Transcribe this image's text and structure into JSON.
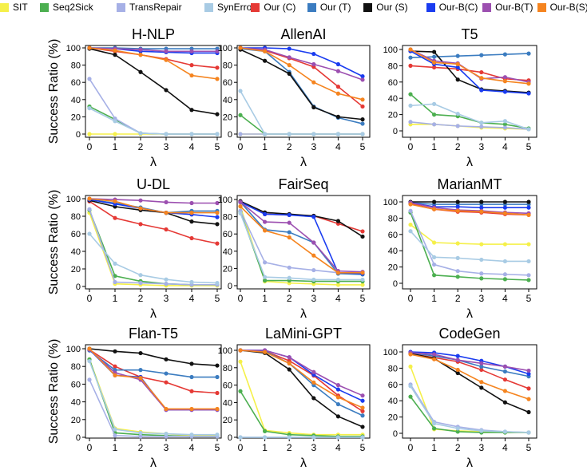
{
  "legend": [
    {
      "label": "SIT",
      "color": "#f5f04a"
    },
    {
      "label": "Seq2Sick",
      "color": "#4caf50"
    },
    {
      "label": "TransRepair",
      "color": "#a6b0e6"
    },
    {
      "label": "SynError",
      "color": "#a8cbe4"
    },
    {
      "label": "Our (C)",
      "color": "#e53935"
    },
    {
      "label": "Our (T)",
      "color": "#3b7cc0"
    },
    {
      "label": "Our (S)",
      "color": "#111111"
    },
    {
      "label": "Our-B(C)",
      "color": "#1a3cf0"
    },
    {
      "label": "Our-B(T)",
      "color": "#9c4fb0"
    },
    {
      "label": "Our-B(S)",
      "color": "#f5841f"
    }
  ],
  "ylabel": "Success Ratio (%)",
  "chart_data": [
    {
      "type": "line",
      "title": "H-NLP",
      "xlabel": "λ",
      "x": [
        0,
        1,
        2,
        3,
        4,
        5
      ],
      "yticks": [
        0,
        20,
        40,
        60,
        80,
        100
      ],
      "ylim": [
        0,
        100
      ],
      "series": [
        {
          "name": "SIT",
          "values": [
            0,
            0,
            0,
            0,
            0,
            0
          ]
        },
        {
          "name": "Seq2Sick",
          "values": [
            32,
            17,
            1,
            0,
            0,
            0
          ]
        },
        {
          "name": "TransRepair",
          "values": [
            64,
            18,
            1,
            0,
            0,
            0
          ]
        },
        {
          "name": "SynError",
          "values": [
            30,
            15,
            1,
            0,
            0,
            0
          ]
        },
        {
          "name": "Our (C)",
          "values": [
            100,
            96,
            92,
            87,
            80,
            77
          ]
        },
        {
          "name": "Our (T)",
          "values": [
            100,
            100,
            99,
            99,
            99,
            99
          ]
        },
        {
          "name": "Our (S)",
          "values": [
            99,
            92,
            72,
            51,
            28,
            23
          ]
        },
        {
          "name": "Our-B(C)",
          "values": [
            100,
            99,
            96,
            95,
            94,
            94
          ]
        },
        {
          "name": "Our-B(T)",
          "values": [
            100,
            99,
            98,
            96,
            96,
            96
          ]
        },
        {
          "name": "Our-B(S)",
          "values": [
            100,
            97,
            92,
            86,
            68,
            64
          ]
        }
      ]
    },
    {
      "type": "line",
      "title": "AllenAI",
      "xlabel": "λ",
      "x": [
        0,
        1,
        2,
        3,
        4,
        5
      ],
      "yticks": [
        0,
        20,
        40,
        60,
        80,
        100
      ],
      "ylim": [
        0,
        100
      ],
      "series": [
        {
          "name": "SIT",
          "values": [
            0,
            0,
            0,
            0,
            0,
            0
          ]
        },
        {
          "name": "Seq2Sick",
          "values": [
            22,
            0,
            0,
            0,
            0,
            0
          ]
        },
        {
          "name": "TransRepair",
          "values": [
            0,
            0,
            0,
            0,
            0,
            0
          ]
        },
        {
          "name": "SynError",
          "values": [
            50,
            0,
            0,
            0,
            0,
            0
          ]
        },
        {
          "name": "Our (C)",
          "values": [
            100,
            97,
            88,
            78,
            55,
            32
          ]
        },
        {
          "name": "Our (T)",
          "values": [
            99,
            96,
            72,
            32,
            19,
            12
          ]
        },
        {
          "name": "Our (S)",
          "values": [
            98,
            85,
            70,
            31,
            20,
            17
          ]
        },
        {
          "name": "Our-B(C)",
          "values": [
            100,
            100,
            99,
            93,
            81,
            67
          ]
        },
        {
          "name": "Our-B(T)",
          "values": [
            100,
            98,
            89,
            81,
            73,
            63
          ]
        },
        {
          "name": "Our-B(S)",
          "values": [
            100,
            96,
            80,
            60,
            47,
            40
          ]
        }
      ]
    },
    {
      "type": "line",
      "title": "T5",
      "xlabel": "λ",
      "x": [
        0,
        1,
        2,
        3,
        4,
        5
      ],
      "yticks": [
        0,
        20,
        40,
        60,
        80,
        100
      ],
      "ylim": [
        0,
        100
      ],
      "series": [
        {
          "name": "SIT",
          "values": [
            8,
            8,
            6,
            4,
            3,
            2
          ]
        },
        {
          "name": "Seq2Sick",
          "values": [
            45,
            20,
            18,
            10,
            8,
            3
          ]
        },
        {
          "name": "TransRepair",
          "values": [
            11,
            8,
            6,
            5,
            4,
            2
          ]
        },
        {
          "name": "SynError",
          "values": [
            31,
            33,
            21,
            10,
            12,
            2
          ]
        },
        {
          "name": "Our (C)",
          "values": [
            80,
            78,
            76,
            72,
            64,
            62
          ]
        },
        {
          "name": "Our (T)",
          "values": [
            90,
            91,
            92,
            93,
            94,
            95
          ]
        },
        {
          "name": "Our (S)",
          "values": [
            98,
            97,
            63,
            51,
            49,
            47
          ]
        },
        {
          "name": "Our-B(C)",
          "values": [
            98,
            82,
            78,
            50,
            48,
            46
          ]
        },
        {
          "name": "Our-B(T)",
          "values": [
            100,
            86,
            83,
            64,
            66,
            60
          ]
        },
        {
          "name": "Our-B(S)",
          "values": [
            100,
            84,
            82,
            65,
            61,
            58
          ]
        }
      ]
    },
    {
      "type": "line",
      "title": "U-DL",
      "xlabel": "λ",
      "x": [
        0,
        1,
        2,
        3,
        4,
        5
      ],
      "yticks": [
        0,
        20,
        40,
        60,
        80,
        100
      ],
      "ylim": [
        0,
        100
      ],
      "series": [
        {
          "name": "SIT",
          "values": [
            84,
            3,
            2,
            1,
            1,
            1
          ]
        },
        {
          "name": "Seq2Sick",
          "values": [
            87,
            12,
            6,
            3,
            2,
            2
          ]
        },
        {
          "name": "TransRepair",
          "values": [
            88,
            5,
            4,
            3,
            2,
            2
          ]
        },
        {
          "name": "SynError",
          "values": [
            60,
            26,
            13,
            8,
            5,
            4
          ]
        },
        {
          "name": "Our (C)",
          "values": [
            97,
            78,
            71,
            65,
            55,
            49
          ]
        },
        {
          "name": "Our (T)",
          "values": [
            99,
            95,
            90,
            84,
            86,
            86
          ]
        },
        {
          "name": "Our (S)",
          "values": [
            98,
            91,
            87,
            84,
            74,
            71
          ]
        },
        {
          "name": "Our-B(C)",
          "values": [
            99,
            94,
            89,
            84,
            82,
            79
          ]
        },
        {
          "name": "Our-B(T)",
          "values": [
            100,
            99,
            98,
            96,
            95,
            95
          ]
        },
        {
          "name": "Our-B(S)",
          "values": [
            100,
            97,
            89,
            84,
            84,
            84
          ]
        }
      ]
    },
    {
      "type": "line",
      "title": "FairSeq",
      "xlabel": "λ",
      "x": [
        0,
        1,
        2,
        3,
        4,
        5
      ],
      "yticks": [
        0,
        20,
        40,
        60,
        80,
        100
      ],
      "ylim": [
        0,
        100
      ],
      "series": [
        {
          "name": "SIT",
          "values": [
            92,
            5,
            3,
            2,
            1,
            1
          ]
        },
        {
          "name": "Seq2Sick",
          "values": [
            86,
            6,
            6,
            5,
            5,
            5
          ]
        },
        {
          "name": "TransRepair",
          "values": [
            87,
            27,
            21,
            18,
            15,
            14
          ]
        },
        {
          "name": "SynError",
          "values": [
            84,
            10,
            9,
            7,
            7,
            7
          ]
        },
        {
          "name": "Our (C)",
          "values": [
            98,
            83,
            82,
            81,
            72,
            63
          ]
        },
        {
          "name": "Our (T)",
          "values": [
            97,
            65,
            62,
            50,
            14,
            13
          ]
        },
        {
          "name": "Our (S)",
          "values": [
            98,
            85,
            83,
            81,
            75,
            57
          ]
        },
        {
          "name": "Our-B(C)",
          "values": [
            97,
            83,
            82,
            80,
            15,
            14
          ]
        },
        {
          "name": "Our-B(T)",
          "values": [
            97,
            74,
            73,
            50,
            17,
            16
          ]
        },
        {
          "name": "Our-B(S)",
          "values": [
            92,
            64,
            56,
            35,
            15,
            15
          ]
        }
      ]
    },
    {
      "type": "line",
      "title": "MarianMT",
      "xlabel": "λ",
      "x": [
        0,
        1,
        2,
        3,
        4,
        5
      ],
      "yticks": [
        0,
        20,
        40,
        60,
        80,
        100
      ],
      "ylim": [
        0,
        100
      ],
      "series": [
        {
          "name": "SIT",
          "values": [
            72,
            50,
            49,
            48,
            48,
            48
          ]
        },
        {
          "name": "Seq2Sick",
          "values": [
            87,
            10,
            8,
            6,
            5,
            4
          ]
        },
        {
          "name": "TransRepair",
          "values": [
            89,
            23,
            15,
            12,
            11,
            10
          ]
        },
        {
          "name": "SynError",
          "values": [
            64,
            32,
            31,
            29,
            27,
            27
          ]
        },
        {
          "name": "Our (C)",
          "values": [
            98,
            91,
            88,
            87,
            85,
            84
          ]
        },
        {
          "name": "Our (T)",
          "values": [
            99,
            97,
            97,
            97,
            97,
            97
          ]
        },
        {
          "name": "Our (S)",
          "values": [
            100,
            100,
            100,
            100,
            100,
            100
          ]
        },
        {
          "name": "Our-B(C)",
          "values": [
            99,
            94,
            94,
            93,
            93,
            93
          ]
        },
        {
          "name": "Our-B(T)",
          "values": [
            99,
            93,
            90,
            89,
            87,
            86
          ]
        },
        {
          "name": "Our-B(S)",
          "values": [
            97,
            91,
            89,
            88,
            86,
            84
          ]
        }
      ]
    },
    {
      "type": "line",
      "title": "Flan-T5",
      "xlabel": "λ",
      "x": [
        0,
        1,
        2,
        3,
        4,
        5
      ],
      "yticks": [
        0,
        20,
        40,
        60,
        80,
        100
      ],
      "ylim": [
        0,
        100
      ],
      "series": [
        {
          "name": "SIT",
          "values": [
            88,
            10,
            6,
            4,
            2,
            2
          ]
        },
        {
          "name": "Seq2Sick",
          "values": [
            88,
            5,
            3,
            2,
            1,
            1
          ]
        },
        {
          "name": "TransRepair",
          "values": [
            65,
            2,
            1,
            1,
            1,
            1
          ]
        },
        {
          "name": "SynError",
          "values": [
            86,
            9,
            5,
            4,
            3,
            3
          ]
        },
        {
          "name": "Our (C)",
          "values": [
            99,
            80,
            68,
            62,
            52,
            50
          ]
        },
        {
          "name": "Our (T)",
          "values": [
            98,
            76,
            76,
            72,
            68,
            68
          ]
        },
        {
          "name": "Our (S)",
          "values": [
            100,
            97,
            95,
            88,
            83,
            81
          ]
        },
        {
          "name": "Our-B(C)",
          "values": [
            99,
            70,
            68,
            31,
            31,
            31
          ]
        },
        {
          "name": "Our-B(T)",
          "values": [
            99,
            73,
            65,
            31,
            31,
            31
          ]
        },
        {
          "name": "Our-B(S)",
          "values": [
            100,
            70,
            67,
            32,
            32,
            32
          ]
        }
      ]
    },
    {
      "type": "line",
      "title": "LaMini-GPT",
      "xlabel": "λ",
      "x": [
        0,
        1,
        2,
        3,
        4,
        5
      ],
      "yticks": [
        0,
        20,
        40,
        60,
        80,
        100
      ],
      "ylim": [
        0,
        100
      ],
      "series": [
        {
          "name": "SIT",
          "values": [
            87,
            8,
            5,
            3,
            3,
            3
          ]
        },
        {
          "name": "Seq2Sick",
          "values": [
            53,
            7,
            3,
            2,
            1,
            1
          ]
        },
        {
          "name": "TransRepair",
          "values": [
            0,
            0,
            0,
            0,
            0,
            0
          ]
        },
        {
          "name": "SynError",
          "values": [
            0,
            0,
            0,
            0,
            0,
            0
          ]
        },
        {
          "name": "Our (C)",
          "values": [
            100,
            99,
            88,
            71,
            48,
            30
          ]
        },
        {
          "name": "Our (T)",
          "values": [
            100,
            99,
            85,
            60,
            38,
            25
          ]
        },
        {
          "name": "Our (S)",
          "values": [
            100,
            97,
            78,
            45,
            24,
            12
          ]
        },
        {
          "name": "Our-B(C)",
          "values": [
            100,
            100,
            92,
            72,
            55,
            42
          ]
        },
        {
          "name": "Our-B(T)",
          "values": [
            100,
            100,
            92,
            75,
            60,
            48
          ]
        },
        {
          "name": "Our-B(S)",
          "values": [
            100,
            98,
            85,
            63,
            46,
            34
          ]
        }
      ]
    },
    {
      "type": "line",
      "title": "CodeGen",
      "xlabel": "λ",
      "x": [
        0,
        1,
        2,
        3,
        4,
        5
      ],
      "yticks": [
        0,
        20,
        40,
        60,
        80,
        100
      ],
      "ylim": [
        0,
        100
      ],
      "series": [
        {
          "name": "SIT",
          "values": [
            82,
            5,
            3,
            2,
            1,
            1
          ]
        },
        {
          "name": "Seq2Sick",
          "values": [
            45,
            6,
            2,
            1,
            1,
            1
          ]
        },
        {
          "name": "TransRepair",
          "values": [
            60,
            14,
            8,
            4,
            2,
            1
          ]
        },
        {
          "name": "SynError",
          "values": [
            58,
            12,
            6,
            3,
            2,
            1
          ]
        },
        {
          "name": "Our (C)",
          "values": [
            98,
            93,
            88,
            78,
            66,
            55
          ]
        },
        {
          "name": "Our (T)",
          "values": [
            99,
            95,
            90,
            82,
            76,
            70
          ]
        },
        {
          "name": "Our (S)",
          "values": [
            98,
            92,
            74,
            56,
            38,
            26
          ]
        },
        {
          "name": "Our-B(C)",
          "values": [
            100,
            99,
            95,
            89,
            82,
            73
          ]
        },
        {
          "name": "Our-B(T)",
          "values": [
            99,
            97,
            90,
            86,
            82,
            77
          ]
        },
        {
          "name": "Our-B(S)",
          "values": [
            97,
            91,
            78,
            63,
            52,
            42
          ]
        }
      ]
    }
  ]
}
